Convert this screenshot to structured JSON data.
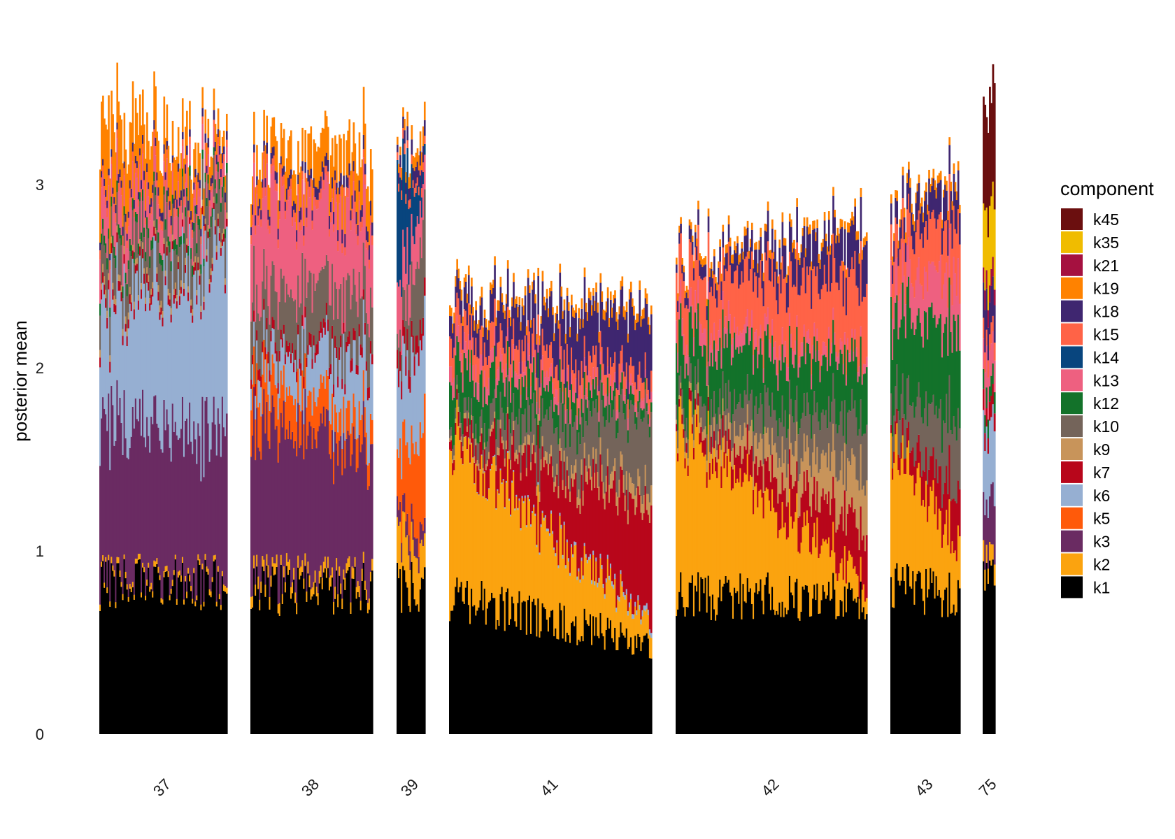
{
  "chart_data": {
    "type": "bar",
    "ylabel": "posterior mean",
    "ylim": [
      0,
      3.8
    ],
    "y_ticks": [
      0,
      1,
      2,
      3
    ],
    "grid": false,
    "legend_title": "component",
    "legend_position": "right",
    "legend": [
      {
        "name": "k45",
        "color": "#6B0F0F"
      },
      {
        "name": "k35",
        "color": "#F0BC00"
      },
      {
        "name": "k21",
        "color": "#A51140"
      },
      {
        "name": "k19",
        "color": "#FF8200"
      },
      {
        "name": "k18",
        "color": "#3F2670"
      },
      {
        "name": "k15",
        "color": "#FF6347"
      },
      {
        "name": "k14",
        "color": "#08457E"
      },
      {
        "name": "k13",
        "color": "#EE6080"
      },
      {
        "name": "k12",
        "color": "#13722A"
      },
      {
        "name": "k10",
        "color": "#74645A"
      },
      {
        "name": "k9",
        "color": "#C8945A"
      },
      {
        "name": "k7",
        "color": "#B8061B"
      },
      {
        "name": "k6",
        "color": "#96AFD2"
      },
      {
        "name": "k5",
        "color": "#FF5A0A"
      },
      {
        "name": "k3",
        "color": "#6A2B62"
      },
      {
        "name": "k2",
        "color": "#FBA30F"
      },
      {
        "name": "k1",
        "color": "#000000"
      }
    ],
    "groups": [
      {
        "label": "37",
        "n": 90,
        "base": {
          "k1": 0.82,
          "k2": 0.03,
          "k3": 0.82,
          "k6": 0.6,
          "k7": 0.05,
          "k9": 0.04,
          "k10": 0.2,
          "k12": 0.06,
          "k13": 0.22,
          "k15": 0.05,
          "k18": 0.04,
          "k19": 0.38
        },
        "end": {
          "k1": 0.82,
          "k2": 0.03,
          "k3": 0.82,
          "k6": 0.95,
          "k7": 0.04,
          "k9": 0.03,
          "k10": 0.2,
          "k12": 0.05,
          "k13": 0.1,
          "k15": 0.04,
          "k18": 0.05,
          "k19": 0.08
        }
      },
      {
        "label": "38",
        "n": 86,
        "base": {
          "k1": 0.78,
          "k2": 0.06,
          "k3": 0.82,
          "k5": 0.25,
          "k6": 0.12,
          "k7": 0.06,
          "k10": 0.3,
          "k13": 0.5,
          "k15": 0.05,
          "k18": 0.05,
          "k19": 0.15
        },
        "end": {
          "k1": 0.8,
          "k2": 0.06,
          "k3": 0.7,
          "k5": 0.15,
          "k6": 0.35,
          "k7": 0.06,
          "k10": 0.3,
          "k13": 0.4,
          "k15": 0.05,
          "k18": 0.07,
          "k19": 0.25
        }
      },
      {
        "label": "39",
        "n": 20,
        "base": {
          "k1": 0.8,
          "k2": 0.3,
          "k3": 0.1,
          "k5": 0.3,
          "k6": 0.4,
          "k7": 0.1,
          "k10": 0.1,
          "k13": 0.3,
          "k14": 0.6,
          "k15": 0.05,
          "k18": 0.05,
          "k19": 0.05
        },
        "end": {
          "k1": 0.8,
          "k2": 0.2,
          "k3": 0.1,
          "k5": 0.6,
          "k6": 0.5,
          "k7": 0.1,
          "k10": 0.5,
          "k13": 0.2,
          "k14": 0.05,
          "k15": 0.05,
          "k18": 0.1,
          "k19": 0.1
        }
      },
      {
        "label": "41",
        "n": 140,
        "base": {
          "k1": 0.75,
          "k2": 0.85,
          "k7": 0.05,
          "k9": 0.02,
          "k10": 0.05,
          "k12": 0.25,
          "k13": 0.1,
          "k15": 0.15,
          "k18": 0.12,
          "k19": 0.05
        },
        "end": {
          "k1": 0.5,
          "k2": 0.12,
          "k6": 0.03,
          "k7": 0.6,
          "k9": 0.1,
          "k10": 0.4,
          "k12": 0.05,
          "k13": 0.05,
          "k15": 0.1,
          "k18": 0.35,
          "k19": 0.05
        }
      },
      {
        "label": "42",
        "n": 132,
        "base": {
          "k1": 0.75,
          "k2": 0.92,
          "k7": 0.04,
          "k9": 0.02,
          "k10": 0.1,
          "k12": 0.3,
          "k13": 0.12,
          "k15": 0.25,
          "k18": 0.05,
          "k19": 0.04
        },
        "end": {
          "k1": 0.75,
          "k2": 0.1,
          "k7": 0.3,
          "k9": 0.3,
          "k10": 0.3,
          "k12": 0.3,
          "k13": 0.05,
          "k15": 0.4,
          "k18": 0.25,
          "k19": 0.05
        }
      },
      {
        "label": "43",
        "n": 48,
        "base": {
          "k1": 0.8,
          "k2": 0.7,
          "k7": 0.05,
          "k10": 0.2,
          "k12": 0.45,
          "k13": 0.2,
          "k15": 0.2,
          "k18": 0.1,
          "k19": 0.05
        },
        "end": {
          "k1": 0.75,
          "k2": 0.3,
          "k7": 0.3,
          "k10": 0.4,
          "k12": 0.5,
          "k13": 0.3,
          "k15": 0.3,
          "k18": 0.2,
          "k19": 0.05
        }
      },
      {
        "label": "75",
        "n": 8,
        "base": {
          "k1": 0.85,
          "k2": 0.1,
          "k3": 0.3,
          "k6": 0.4,
          "k7": 0.1,
          "k12": 0.1,
          "k13": 0.2,
          "k15": 0.1,
          "k18": 0.2,
          "k21": 0.1,
          "k35": 0.4,
          "k45": 0.6
        },
        "end": {
          "k1": 0.85,
          "k2": 0.1,
          "k3": 0.3,
          "k6": 0.4,
          "k7": 0.1,
          "k12": 0.1,
          "k13": 0.2,
          "k15": 0.1,
          "k18": 0.2,
          "k21": 0.1,
          "k35": 0.4,
          "k45": 0.6
        }
      }
    ]
  }
}
